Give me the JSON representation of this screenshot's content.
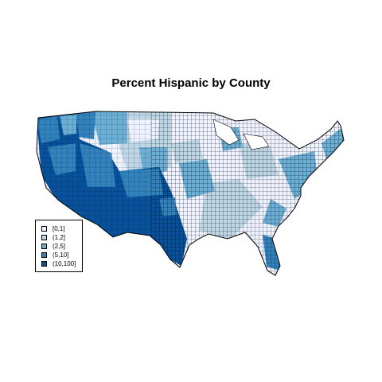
{
  "title": "Percent Hispanic by County",
  "legend": {
    "items": [
      {
        "label": "[0,1]",
        "color": "#eff3ff"
      },
      {
        "label": "(1,2]",
        "color": "#bdd7e7"
      },
      {
        "label": "(2,5]",
        "color": "#6baed6"
      },
      {
        "label": "(5,10]",
        "color": "#3182bd"
      },
      {
        "label": "(10,100]",
        "color": "#08519c"
      }
    ]
  }
}
